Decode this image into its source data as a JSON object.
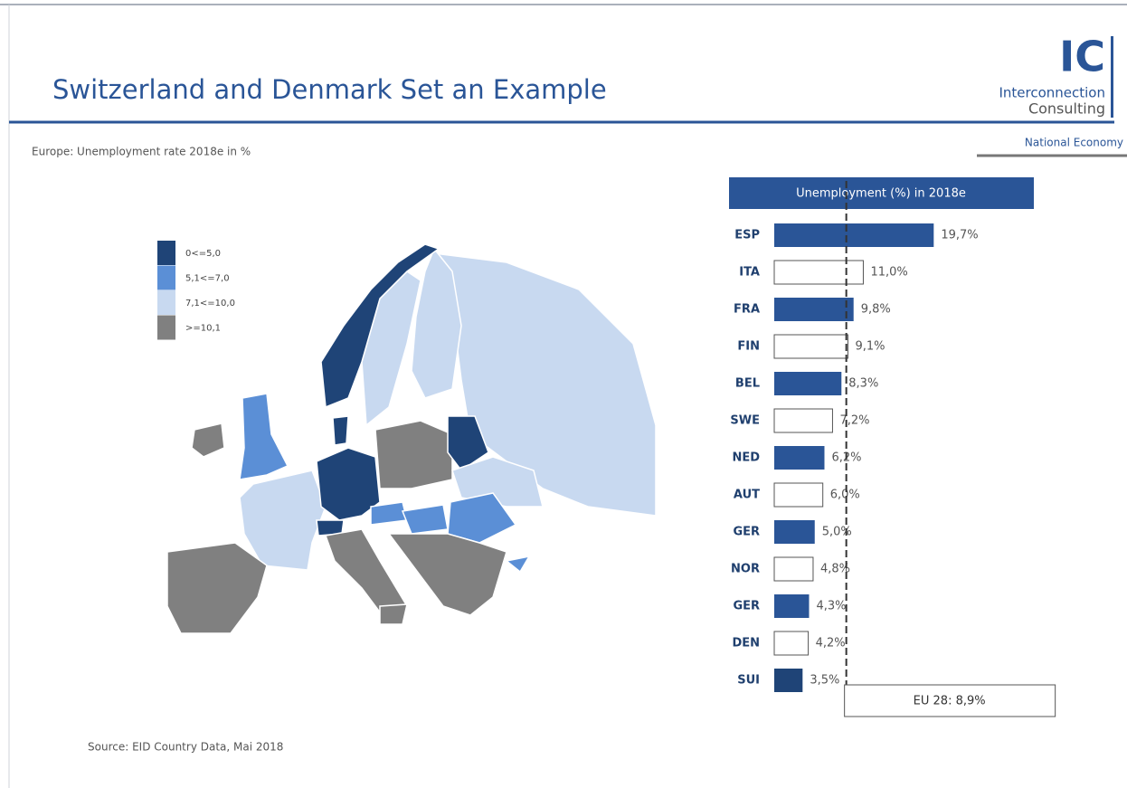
{
  "header": {
    "title": "Switzerland and Denmark Set an Example",
    "subtitle": "Europe: Unemployment rate 2018e in %",
    "logo": {
      "mark": "IC",
      "line1": "Interconnection",
      "line2": "Consulting"
    },
    "section": "National Economy"
  },
  "map_legend": [
    {
      "label": "0<=5,0",
      "color": "#1f4477"
    },
    {
      "label": "5,1<=7,0",
      "color": "#5b8fd6"
    },
    {
      "label": "7,1<=10,0",
      "color": "#c8d9f0"
    },
    {
      "label": ">=10,1",
      "color": "#808080"
    }
  ],
  "chart_data": {
    "type": "bar",
    "orientation": "horizontal",
    "title": "Unemployment (%) in 2018e",
    "categories": [
      "ESP",
      "ITA",
      "FRA",
      "FIN",
      "BEL",
      "SWE",
      "NED",
      "AUT",
      "GER",
      "NOR",
      "GER",
      "DEN",
      "SUI"
    ],
    "values": [
      19.7,
      11.0,
      9.8,
      9.1,
      8.3,
      7.2,
      6.2,
      6.0,
      5.0,
      4.8,
      4.3,
      4.2,
      3.5
    ],
    "value_labels": [
      "19,7%",
      "11,0%",
      "9,8%",
      "9,1%",
      "8,3%",
      "7,2%",
      "6,2%",
      "6,0%",
      "5,0%",
      "4,8%",
      "4,3%",
      "4,2%",
      "3,5%"
    ],
    "colors": [
      "#2a5597",
      "#ffffff",
      "#2a5597",
      "#ffffff",
      "#2a5597",
      "#ffffff",
      "#2a5597",
      "#ffffff",
      "#2a5597",
      "#ffffff",
      "#2a5597",
      "#ffffff",
      "#1f4477"
    ],
    "xlim": [
      0,
      20
    ],
    "reference": {
      "value": 8.9,
      "label": "EU 28: 8,9%"
    }
  },
  "source": "Source: EID Country Data, Mai 2018"
}
